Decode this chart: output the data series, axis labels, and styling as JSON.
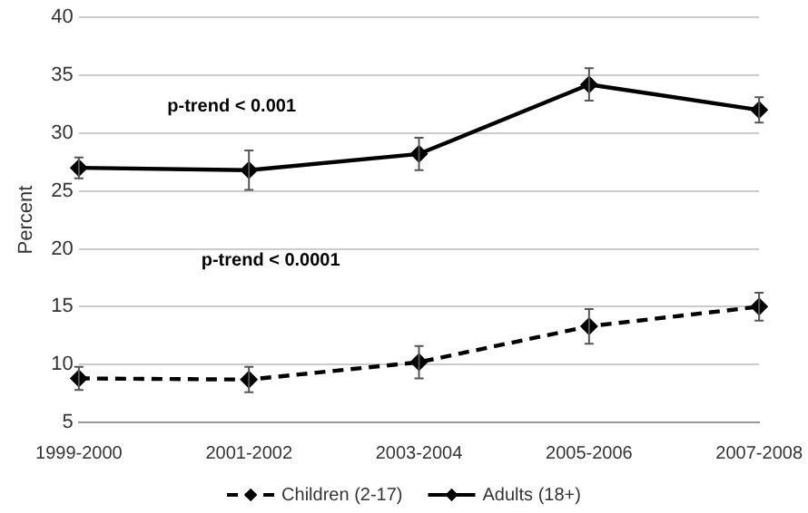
{
  "chart_data": {
    "type": "line",
    "ylabel": "Percent",
    "categories": [
      "1999-2000",
      "2001-2002",
      "2003-2004",
      "2005-2006",
      "2007-2008"
    ],
    "series": [
      {
        "name": "Children (2-17)",
        "color": "#000000",
        "line_style": "dashed",
        "values": [
          8.8,
          8.7,
          10.2,
          13.3,
          15.0
        ],
        "errors": [
          1.0,
          1.1,
          1.4,
          1.5,
          1.2
        ]
      },
      {
        "name": "Adults (18+)",
        "color": "#000000",
        "line_style": "solid",
        "values": [
          27.0,
          26.8,
          28.2,
          34.2,
          32.0
        ],
        "errors": [
          0.9,
          1.7,
          1.4,
          1.4,
          1.1
        ]
      }
    ],
    "ylim": [
      5,
      40
    ],
    "yticks": [
      5,
      10,
      15,
      20,
      25,
      30,
      35,
      40
    ],
    "grid": "y",
    "legend": "bottom",
    "marker": "diamond",
    "annotations": [
      "p-trend < 0.001",
      "p-trend < 0.0001"
    ]
  }
}
